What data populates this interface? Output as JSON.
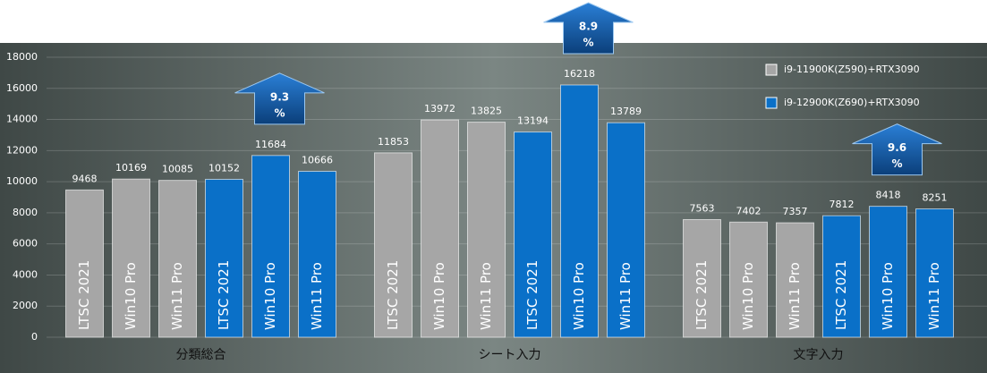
{
  "chart_data": {
    "type": "bar",
    "categories": [
      "分類総合",
      "シート入力",
      "文字入力"
    ],
    "series": [
      {
        "name": "LTSC 2021",
        "color": "#a6a6a6",
        "values": [
          9468,
          11853,
          7563
        ]
      },
      {
        "name": "Win10 Pro",
        "color": "#a6a6a6",
        "values": [
          10169,
          13972,
          7402
        ]
      },
      {
        "name": "Win11 Pro",
        "color": "#a6a6a6",
        "values": [
          10085,
          13825,
          7357
        ]
      },
      {
        "name": "LTSC 2021",
        "color": "#0a70c8",
        "values": [
          10152,
          13194,
          7812
        ]
      },
      {
        "name": "Win10 Pro",
        "color": "#0a70c8",
        "values": [
          11684,
          16218,
          8418
        ]
      },
      {
        "name": "Win11 Pro",
        "color": "#0a70c8",
        "values": [
          10666,
          13789,
          8251
        ]
      }
    ],
    "legend": [
      {
        "name": "i9-11900K(Z590)+RTX3090",
        "color": "#a6a6a6"
      },
      {
        "name": "i9-12900K(Z690)+RTX3090",
        "color": "#0a70c8"
      }
    ],
    "annotations": [
      {
        "text": "9.3",
        "unit": "%"
      },
      {
        "text": "8.9",
        "unit": "%"
      },
      {
        "text": "9.6",
        "unit": "%"
      }
    ],
    "ylim": [
      0,
      18000
    ],
    "yticks": [
      0,
      2000,
      4000,
      6000,
      8000,
      10000,
      12000,
      14000,
      16000,
      18000
    ],
    "grid": true
  }
}
